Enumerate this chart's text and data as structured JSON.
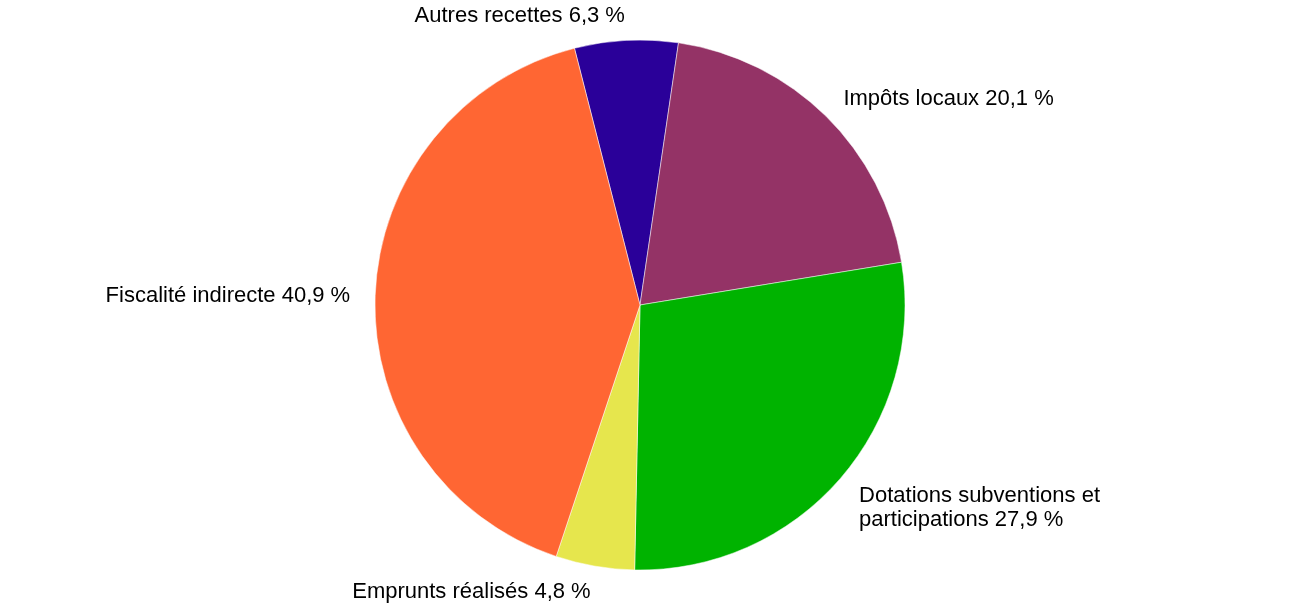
{
  "chart_data": {
    "type": "pie",
    "categories": [
      "Autres recettes",
      "Impôts locaux",
      "Dotations subventions et participations",
      "Emprunts réalisés",
      "Fiscalité indirecte"
    ],
    "values": [
      6.3,
      20.1,
      27.9,
      4.8,
      40.9
    ],
    "value_labels": [
      "6,3 %",
      "20,1 %",
      "27,9 %",
      "4,8 %",
      "40,9 %"
    ],
    "colors": [
      "#2a0099",
      "#943366",
      "#00b300",
      "#e6e64d",
      "#ff6633"
    ],
    "legend": false
  }
}
